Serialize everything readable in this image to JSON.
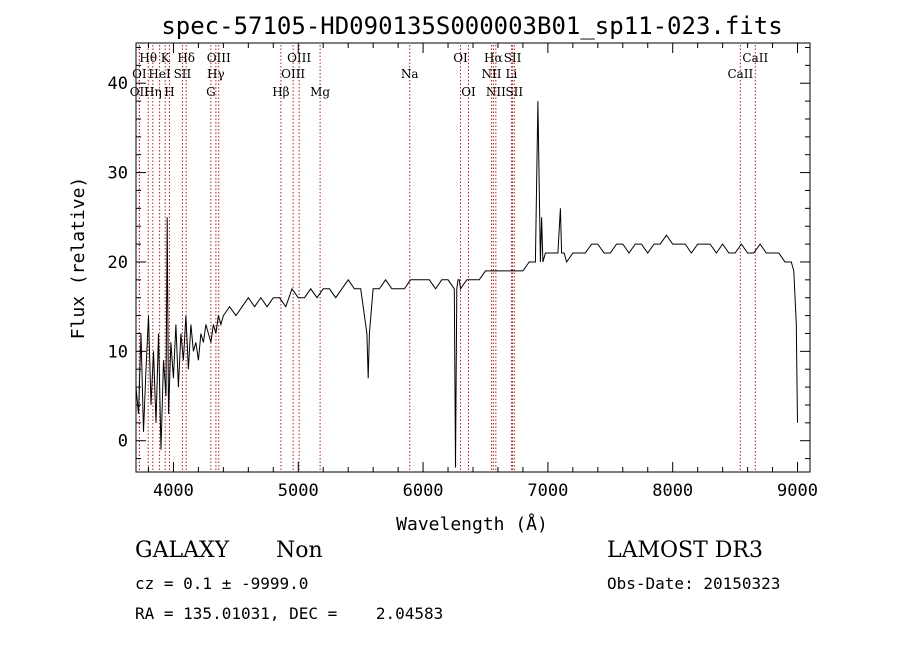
{
  "chart_data": {
    "type": "line",
    "title": "spec-57105-HD090135S000003B01_sp11-023.fits",
    "xlabel": "Wavelength (Å)",
    "ylabel": "Flux (relative)",
    "xlim": [
      3700,
      9100
    ],
    "ylim": [
      -3.5,
      44.5
    ],
    "xticks": [
      4000,
      5000,
      6000,
      7000,
      8000,
      9000
    ],
    "yticks": [
      0,
      10,
      20,
      30,
      40
    ],
    "x_tick_labels": [
      "4000",
      "5000",
      "6000",
      "7000",
      "8000",
      "9000"
    ],
    "y_tick_labels": [
      "0",
      "10",
      "20",
      "30",
      "40"
    ],
    "series": [
      {
        "name": "spectrum",
        "x": [
          3700,
          3720,
          3740,
          3760,
          3780,
          3800,
          3820,
          3840,
          3860,
          3880,
          3900,
          3920,
          3940,
          3950,
          3960,
          3980,
          4000,
          4020,
          4040,
          4060,
          4080,
          4100,
          4120,
          4140,
          4160,
          4180,
          4200,
          4220,
          4240,
          4260,
          4280,
          4300,
          4320,
          4340,
          4360,
          4380,
          4400,
          4450,
          4500,
          4550,
          4600,
          4650,
          4700,
          4750,
          4800,
          4850,
          4900,
          4950,
          5000,
          5050,
          5100,
          5150,
          5200,
          5250,
          5300,
          5350,
          5400,
          5450,
          5500,
          5550,
          5560,
          5570,
          5600,
          5650,
          5700,
          5750,
          5800,
          5850,
          5900,
          5950,
          6000,
          6050,
          6100,
          6150,
          6200,
          6250,
          6260,
          6270,
          6280,
          6290,
          6300,
          6350,
          6400,
          6450,
          6500,
          6550,
          6600,
          6650,
          6700,
          6750,
          6800,
          6850,
          6900,
          6920,
          6940,
          6950,
          6960,
          6980,
          7000,
          7050,
          7080,
          7100,
          7110,
          7130,
          7150,
          7200,
          7250,
          7300,
          7350,
          7400,
          7450,
          7500,
          7550,
          7600,
          7650,
          7700,
          7750,
          7800,
          7850,
          7900,
          7950,
          8000,
          8050,
          8100,
          8150,
          8200,
          8250,
          8300,
          8350,
          8400,
          8450,
          8500,
          8550,
          8600,
          8650,
          8700,
          8750,
          8800,
          8850,
          8900,
          8950,
          8970,
          8990,
          9000
        ],
        "y": [
          6,
          3,
          12,
          1,
          8,
          14,
          4,
          10,
          2,
          12,
          -1,
          9,
          5,
          25,
          3,
          11,
          7,
          13,
          6,
          12,
          9,
          14,
          8,
          13,
          10,
          11,
          9,
          12,
          11,
          13,
          12,
          11,
          13,
          12,
          14,
          13,
          14,
          15,
          14,
          15,
          16,
          15,
          16,
          15,
          16,
          16,
          15,
          17,
          16,
          16,
          17,
          16,
          17,
          17,
          16,
          17,
          18,
          17,
          17,
          12,
          7,
          12,
          17,
          17,
          18,
          17,
          17,
          17,
          18,
          18,
          18,
          18,
          17,
          18,
          18,
          17,
          -3,
          17,
          18,
          18,
          17,
          18,
          18,
          18,
          19,
          19,
          19,
          19,
          19,
          19,
          19,
          20,
          20,
          38,
          20,
          25,
          20,
          21,
          21,
          21,
          21,
          26,
          21,
          21,
          20,
          21,
          21,
          21,
          22,
          22,
          21,
          21,
          22,
          22,
          21,
          22,
          22,
          21,
          22,
          22,
          23,
          22,
          22,
          22,
          21,
          22,
          22,
          22,
          21,
          22,
          21,
          21,
          22,
          21,
          21,
          22,
          21,
          21,
          21,
          20,
          20,
          19,
          13,
          2
        ]
      }
    ],
    "reference_lines": [
      {
        "label": "OII",
        "wavelength": 3727,
        "row": 2
      },
      {
        "label": "OI",
        "wavelength": 3727,
        "row": 1
      },
      {
        "label": "Hθ",
        "wavelength": 3798,
        "row": 0
      },
      {
        "label": "HeI",
        "wavelength": 3889,
        "row": 1
      },
      {
        "label": "Hη",
        "wavelength": 3835,
        "row": 2
      },
      {
        "label": "K",
        "wavelength": 3934,
        "row": 0
      },
      {
        "label": "H",
        "wavelength": 3968,
        "row": 2
      },
      {
        "label": "Hδ",
        "wavelength": 4102,
        "row": 0
      },
      {
        "label": "SII",
        "wavelength": 4072,
        "row": 1
      },
      {
        "label": "OIII",
        "wavelength": 4363,
        "row": 0
      },
      {
        "label": "Hγ",
        "wavelength": 4340,
        "row": 1
      },
      {
        "label": "G",
        "wavelength": 4300,
        "row": 2
      },
      {
        "label": "OIII",
        "wavelength": 5007,
        "row": 0
      },
      {
        "label": "OIII",
        "wavelength": 4959,
        "row": 1
      },
      {
        "label": "Hβ",
        "wavelength": 4861,
        "row": 2
      },
      {
        "label": "Mg",
        "wavelength": 5175,
        "row": 2
      },
      {
        "label": "Na",
        "wavelength": 5893,
        "row": 1
      },
      {
        "label": "OI",
        "wavelength": 6300,
        "row": 0
      },
      {
        "label": "OI",
        "wavelength": 6364,
        "row": 2
      },
      {
        "label": "Hα",
        "wavelength": 6563,
        "row": 0
      },
      {
        "label": "NII",
        "wavelength": 6548,
        "row": 1
      },
      {
        "label": "NII",
        "wavelength": 6583,
        "row": 2
      },
      {
        "label": "SII",
        "wavelength": 6717,
        "row": 0
      },
      {
        "label": "Li",
        "wavelength": 6708,
        "row": 1
      },
      {
        "label": "SII",
        "wavelength": 6731,
        "row": 2
      },
      {
        "label": "CaII",
        "wavelength": 8662,
        "row": 0
      },
      {
        "label": "CaII",
        "wavelength": 8542,
        "row": 1
      }
    ]
  },
  "info": {
    "class": "GALAXY",
    "subclass": "Non",
    "survey": "LAMOST DR3",
    "cz": "cz = 0.1 ± -9999.0",
    "obs_date": "Obs-Date: 20150323",
    "radec": "RA = 135.01031, DEC =    2.04583"
  }
}
